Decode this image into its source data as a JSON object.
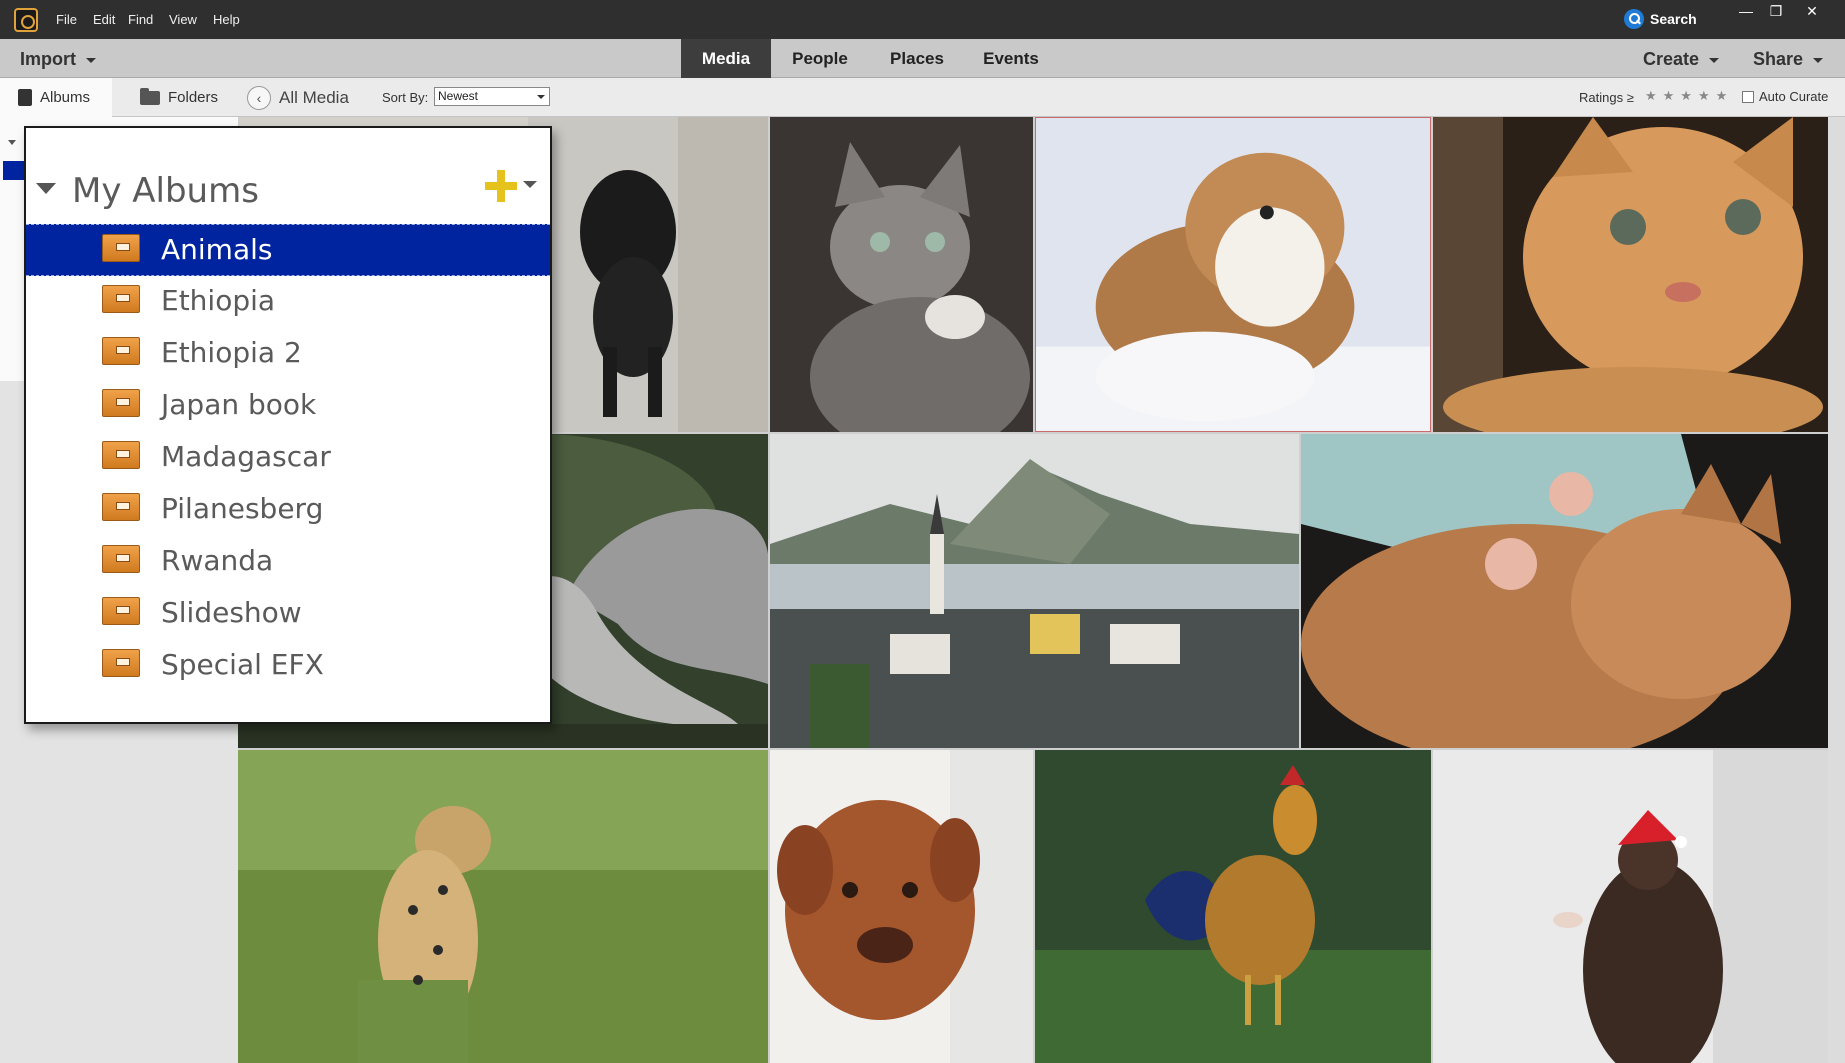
{
  "menubar": {
    "items": [
      "File",
      "Edit",
      "Find",
      "View",
      "Help"
    ],
    "search_label": "Search",
    "window_controls": {
      "minimize": "—",
      "maximize": "❐",
      "close": "✕"
    }
  },
  "navbar": {
    "import_label": "Import",
    "tabs": [
      {
        "label": "Media",
        "active": true
      },
      {
        "label": "People",
        "active": false
      },
      {
        "label": "Places",
        "active": false
      },
      {
        "label": "Events",
        "active": false
      }
    ],
    "create_label": "Create",
    "share_label": "Share"
  },
  "subbar": {
    "albums_tab": "Albums",
    "folders_tab": "Folders",
    "back_icon": "‹",
    "all_media": "All Media",
    "sort_by_label": "Sort By:",
    "sort_value": "Newest",
    "ratings_label": "Ratings ≥",
    "stars": "★★★★★",
    "auto_curate_label": "Auto Curate"
  },
  "albums_popup": {
    "title": "My Albums",
    "items": [
      {
        "label": "Animals",
        "selected": true
      },
      {
        "label": "Ethiopia",
        "selected": false
      },
      {
        "label": "Ethiopia 2",
        "selected": false
      },
      {
        "label": "Japan book",
        "selected": false
      },
      {
        "label": "Madagascar",
        "selected": false
      },
      {
        "label": "Pilanesberg",
        "selected": false
      },
      {
        "label": "Rwanda",
        "selected": false
      },
      {
        "label": "Slideshow",
        "selected": false
      },
      {
        "label": "Special EFX",
        "selected": false
      }
    ]
  },
  "colors": {
    "selection_blue": "#0024a0",
    "media_tab_bg": "#3d3d3d",
    "search_blue": "#1f7bd6",
    "plus_yellow": "#e6c21c",
    "album_orange": "#e08a2e"
  }
}
